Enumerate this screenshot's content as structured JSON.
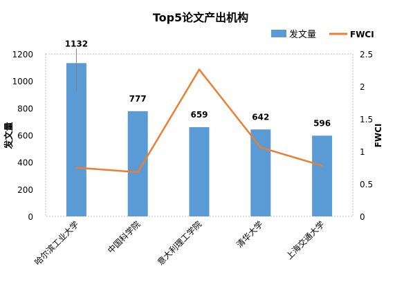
{
  "chart_data": {
    "type": "bar",
    "title": "Top5论文产出机构",
    "categories": [
      "哈尔滨工业大学",
      "中国科学院",
      "意大利理工学院",
      "清华大学",
      "上海交通大学"
    ],
    "series": [
      {
        "name": "发文量",
        "type": "bar",
        "axis": "left",
        "values": [
          1132,
          777,
          659,
          642,
          596
        ],
        "color": "#5B9BD5"
      },
      {
        "name": "FWCI",
        "type": "line",
        "axis": "right",
        "values": [
          0.75,
          0.68,
          2.26,
          1.06,
          0.78
        ],
        "color": "#ED7D31"
      }
    ],
    "data_labels": [
      "1132",
      "777",
      "659",
      "642",
      "596"
    ],
    "ylabel": "发文量",
    "y2label": "FWCI",
    "ylim": [
      0,
      1200
    ],
    "y2lim": [
      0,
      2.5
    ],
    "yticks": [
      "0",
      "200",
      "400",
      "600",
      "800",
      "1000",
      "1200"
    ],
    "y2ticks": [
      "0",
      "0.5",
      "1",
      "1.5",
      "2",
      "2.5"
    ],
    "grid": false,
    "legend_position": "top-right"
  }
}
